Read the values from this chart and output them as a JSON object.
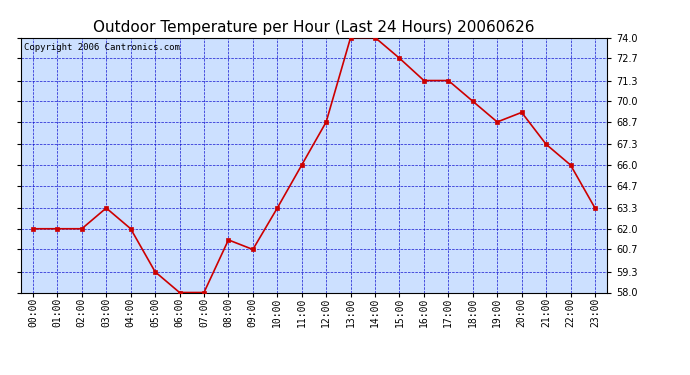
{
  "title": "Outdoor Temperature per Hour (Last 24 Hours) 20060626",
  "copyright": "Copyright 2006 Cantronics.com",
  "hours": [
    "00:00",
    "01:00",
    "02:00",
    "03:00",
    "04:00",
    "05:00",
    "06:00",
    "07:00",
    "08:00",
    "09:00",
    "10:00",
    "11:00",
    "12:00",
    "13:00",
    "14:00",
    "15:00",
    "16:00",
    "17:00",
    "18:00",
    "19:00",
    "20:00",
    "21:00",
    "22:00",
    "23:00"
  ],
  "temps": [
    62.0,
    62.0,
    62.0,
    63.3,
    62.0,
    59.3,
    58.0,
    58.0,
    61.3,
    60.7,
    63.3,
    66.0,
    68.7,
    74.0,
    74.0,
    72.7,
    71.3,
    71.3,
    70.0,
    68.7,
    69.3,
    67.3,
    66.0,
    63.3
  ],
  "ylim_min": 58.0,
  "ylim_max": 74.0,
  "yticks": [
    58.0,
    59.3,
    60.7,
    62.0,
    63.3,
    64.7,
    66.0,
    67.3,
    68.7,
    70.0,
    71.3,
    72.7,
    74.0
  ],
  "line_color": "#cc0000",
  "marker_color": "#cc0000",
  "grid_color": "#0000cc",
  "plot_bg_color": "#cce0ff",
  "fig_bg_color": "#ffffff",
  "title_fontsize": 11,
  "tick_fontsize": 7,
  "copyright_fontsize": 6.5,
  "border_color": "#000000"
}
